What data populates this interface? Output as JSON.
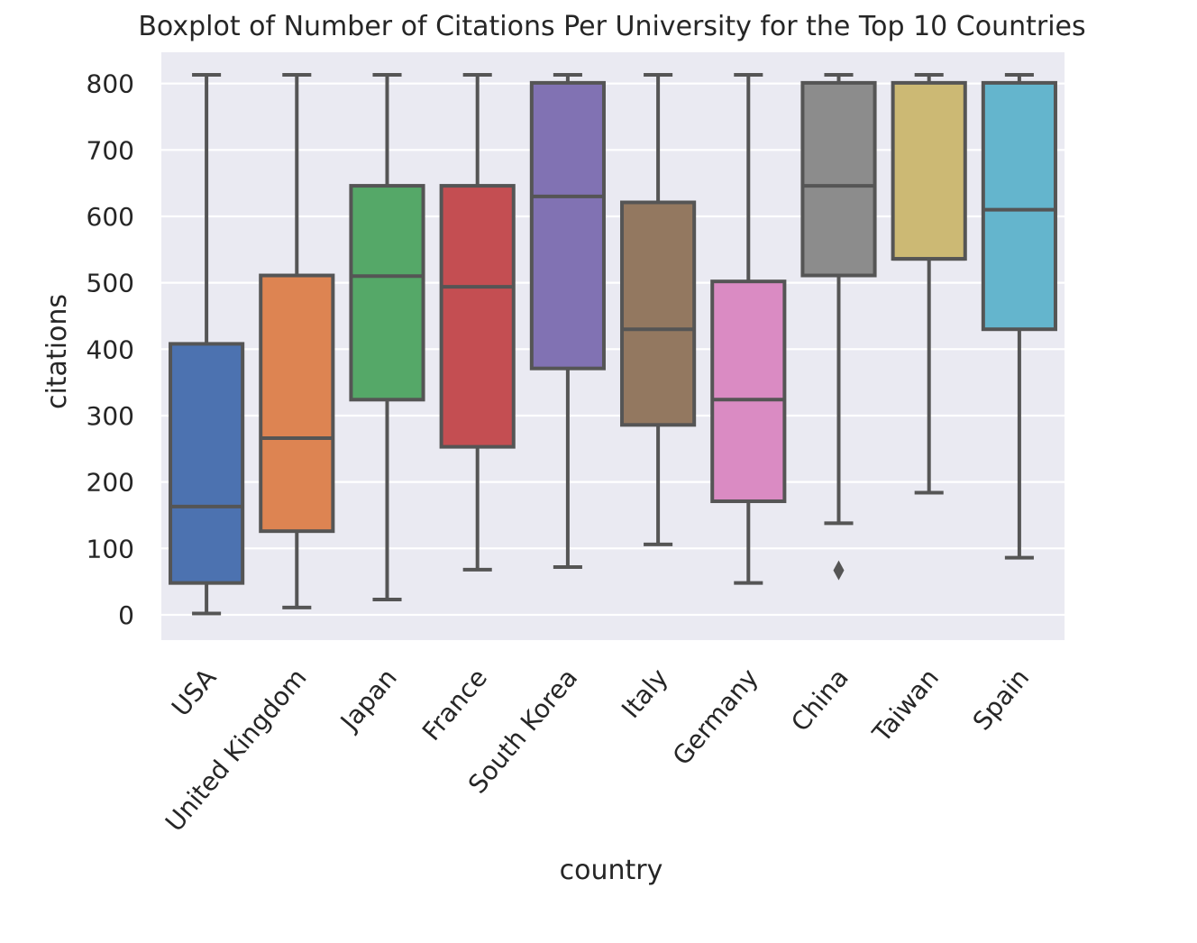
{
  "chart_data": {
    "type": "boxplot",
    "title": "Boxplot of Number of Citations Per University for the Top 10 Countries",
    "xlabel": "country",
    "ylabel": "citations",
    "ylim": [
      -38,
      847
    ],
    "yticks": [
      0,
      100,
      200,
      300,
      400,
      500,
      600,
      700,
      800
    ],
    "grid": true,
    "legend": "none",
    "colors": {
      "background": "#eaeaf2",
      "grid": "#ffffff",
      "edge": "#555555"
    },
    "categories": [
      "USA",
      "United Kingdom",
      "Japan",
      "France",
      "South Korea",
      "Italy",
      "Germany",
      "China",
      "Taiwan",
      "Spain"
    ],
    "boxes": [
      {
        "category": "USA",
        "whisker_low": 2,
        "q1": 48,
        "median": 163,
        "q3": 408,
        "whisker_high": 813,
        "color": "#4c72b0",
        "outliers": []
      },
      {
        "category": "United Kingdom",
        "whisker_low": 11,
        "q1": 126,
        "median": 266,
        "q3": 511,
        "whisker_high": 813,
        "color": "#dd8452",
        "outliers": []
      },
      {
        "category": "Japan",
        "whisker_low": 23,
        "q1": 324,
        "median": 510,
        "q3": 646,
        "whisker_high": 813,
        "color": "#55a868",
        "outliers": []
      },
      {
        "category": "France",
        "whisker_low": 68,
        "q1": 253,
        "median": 494,
        "q3": 646,
        "whisker_high": 813,
        "color": "#c44e52",
        "outliers": []
      },
      {
        "category": "South Korea",
        "whisker_low": 72,
        "q1": 371,
        "median": 630,
        "q3": 801,
        "whisker_high": 813,
        "color": "#8172b3",
        "outliers": []
      },
      {
        "category": "Italy",
        "whisker_low": 106,
        "q1": 286,
        "median": 430,
        "q3": 621,
        "whisker_high": 813,
        "color": "#937860",
        "outliers": []
      },
      {
        "category": "Germany",
        "whisker_low": 48,
        "q1": 171,
        "median": 324,
        "q3": 502,
        "whisker_high": 813,
        "color": "#da8bc3",
        "outliers": []
      },
      {
        "category": "China",
        "whisker_low": 138,
        "q1": 511,
        "median": 646,
        "q3": 801,
        "whisker_high": 813,
        "color": "#8c8c8c",
        "outliers": [
          67
        ]
      },
      {
        "category": "Taiwan",
        "whisker_low": 184,
        "q1": 536,
        "median": 536,
        "q3": 801,
        "whisker_high": 813,
        "color": "#ccb974",
        "outliers": []
      },
      {
        "category": "Spain",
        "whisker_low": 86,
        "q1": 430,
        "median": 610,
        "q3": 801,
        "whisker_high": 813,
        "color": "#64b5cd",
        "outliers": []
      }
    ]
  }
}
